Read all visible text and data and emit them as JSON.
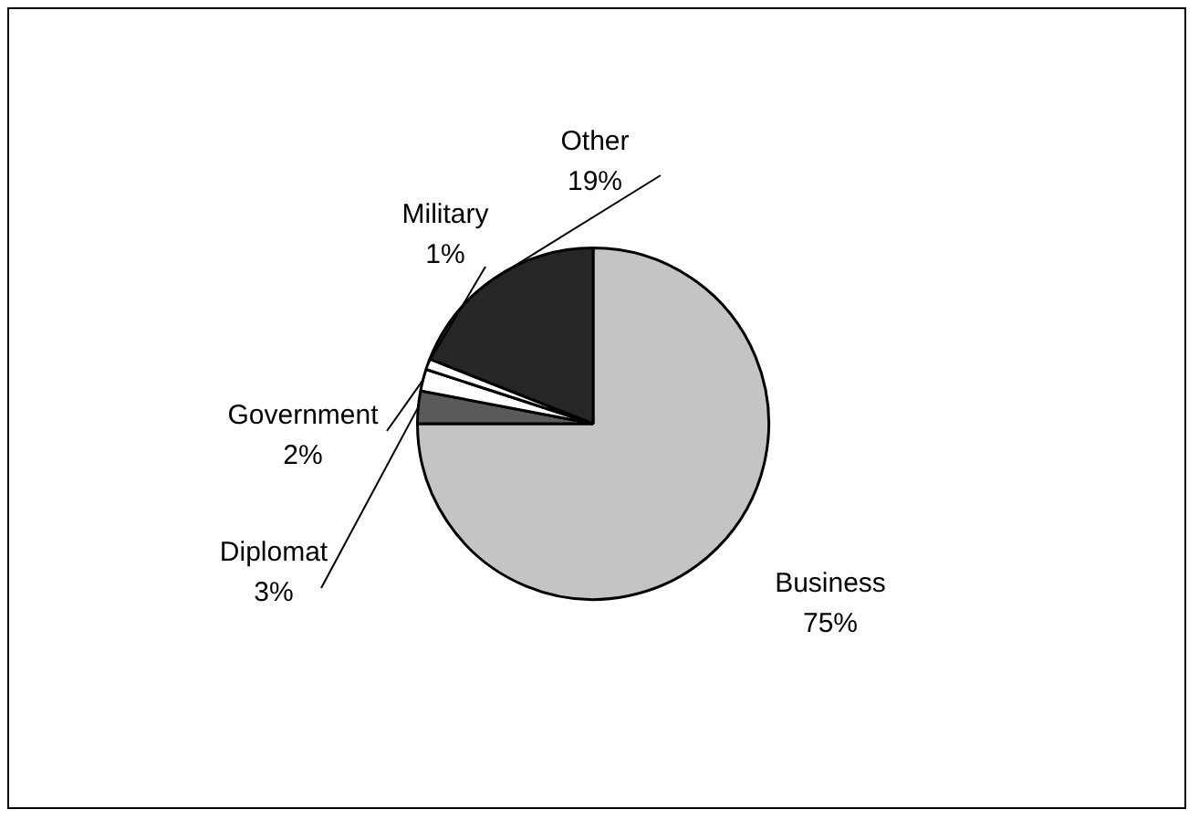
{
  "chart_data": {
    "type": "pie",
    "categories": [
      "Business",
      "Diplomat",
      "Government",
      "Military",
      "Other"
    ],
    "values": [
      75,
      3,
      2,
      1,
      19
    ],
    "value_labels": [
      "75%",
      "3%",
      "2%",
      "1%",
      "19%"
    ],
    "colors": [
      "#c4c4c4",
      "#5a5a5a",
      "#ffffff",
      "#ffffff",
      "#262626"
    ],
    "legend": false
  }
}
